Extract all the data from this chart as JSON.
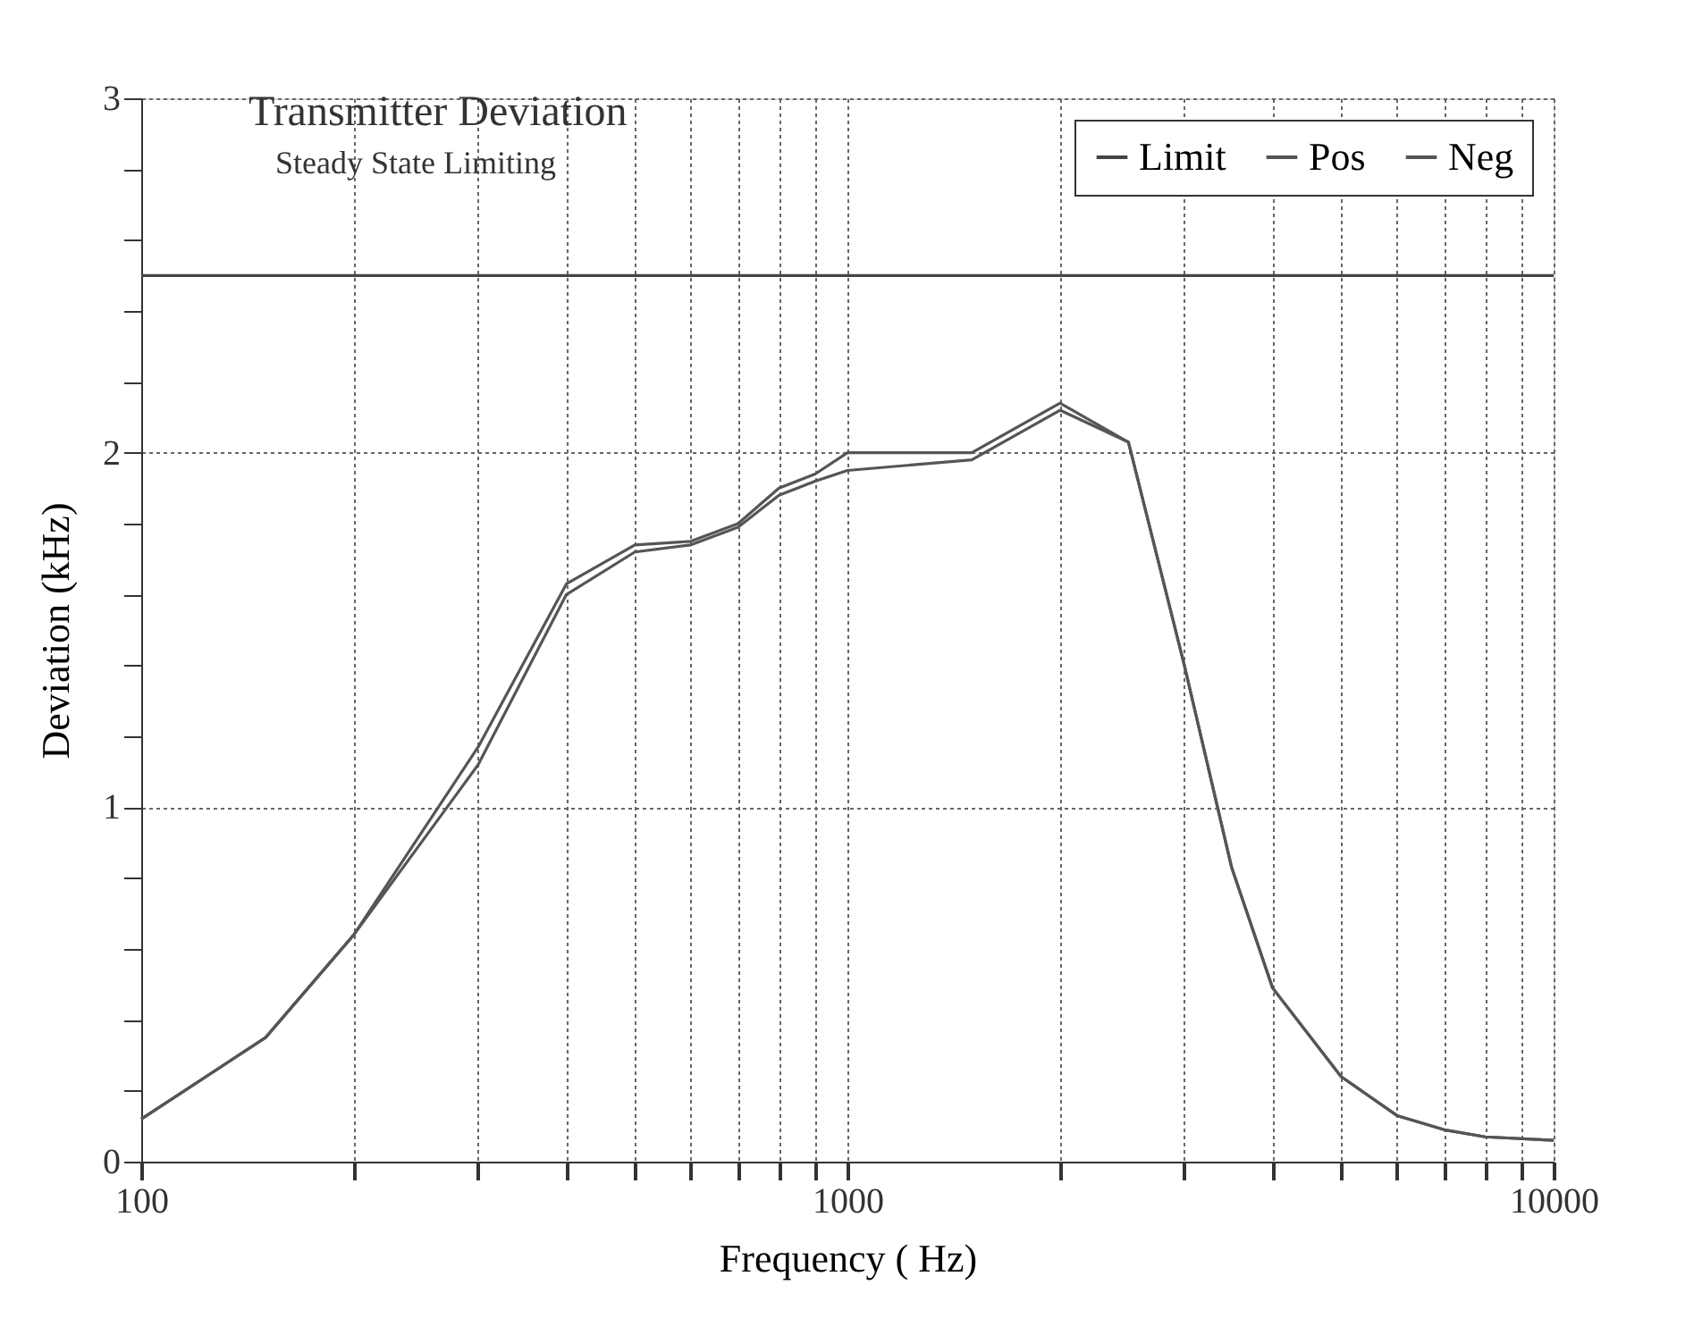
{
  "chart_data": {
    "type": "line",
    "title": "Transmitter Deviation",
    "subtitle": "Steady State Limiting",
    "xlabel": "Frequency (  Hz)",
    "ylabel": "Deviation (kHz)",
    "log": "x",
    "xlim": [
      100,
      10000
    ],
    "xticks": [
      100,
      {
        "value": 200,
        "label": null
      },
      {
        "value": 300,
        "label": null
      },
      {
        "value": 400,
        "label": null
      },
      {
        "value": 500,
        "label": null
      },
      {
        "value": 600,
        "label": null
      },
      {
        "value": 700,
        "label": null
      },
      {
        "value": 800,
        "label": null
      },
      {
        "value": 900,
        "label": null
      },
      1000,
      {
        "value": 2000,
        "label": null
      },
      {
        "value": 3000,
        "label": null
      },
      {
        "value": 4000,
        "label": null
      },
      {
        "value": 5000,
        "label": null
      },
      {
        "value": 6000,
        "label": null
      },
      {
        "value": 7000,
        "label": null
      },
      {
        "value": 8000,
        "label": null
      },
      {
        "value": 9000,
        "label": null
      },
      10000
    ],
    "ylim": [
      0,
      3
    ],
    "yticks": [
      0,
      {
        "value": 0.2,
        "label": null
      },
      {
        "value": 0.4,
        "label": null
      },
      {
        "value": 0.6,
        "label": null
      },
      {
        "value": 0.8,
        "label": null
      },
      1,
      {
        "value": 1.2,
        "label": null
      },
      {
        "value": 1.4,
        "label": null
      },
      {
        "value": 1.6,
        "label": null
      },
      {
        "value": 1.8,
        "label": null
      },
      2,
      {
        "value": 2.2,
        "label": null
      },
      {
        "value": 2.4,
        "label": null
      },
      {
        "value": 2.6,
        "label": null
      },
      {
        "value": 2.8,
        "label": null
      },
      3
    ],
    "grid": true,
    "legend": "top right",
    "marker": "none",
    "line_style": "solid",
    "series": [
      {
        "name": "Limit",
        "color": "#444444",
        "x": [
          100,
          10000
        ],
        "values": [
          2.5,
          2.5
        ]
      },
      {
        "name": "Pos",
        "color": "#555555",
        "x": [
          100,
          150,
          200,
          300,
          400,
          500,
          600,
          700,
          800,
          900,
          1000,
          1500,
          2000,
          2500,
          3000,
          3500,
          4000,
          5000,
          6000,
          7000,
          8000,
          10000
        ],
        "values": [
          0.12,
          0.35,
          0.64,
          1.17,
          1.63,
          1.74,
          1.75,
          1.8,
          1.9,
          1.94,
          2.0,
          2.0,
          2.14,
          2.03,
          1.4,
          0.83,
          0.49,
          0.24,
          0.13,
          0.09,
          0.07,
          0.06
        ]
      },
      {
        "name": "Neg",
        "color": "#555555",
        "x": [
          100,
          150,
          200,
          300,
          400,
          500,
          600,
          700,
          800,
          900,
          1000,
          1500,
          2000,
          2500,
          3000,
          3500,
          4000,
          5000,
          6000,
          7000,
          8000,
          10000
        ],
        "values": [
          0.12,
          0.35,
          0.64,
          1.12,
          1.6,
          1.72,
          1.74,
          1.79,
          1.88,
          1.92,
          1.95,
          1.98,
          2.12,
          2.03,
          1.4,
          0.83,
          0.49,
          0.24,
          0.13,
          0.09,
          0.07,
          0.06
        ]
      }
    ]
  }
}
